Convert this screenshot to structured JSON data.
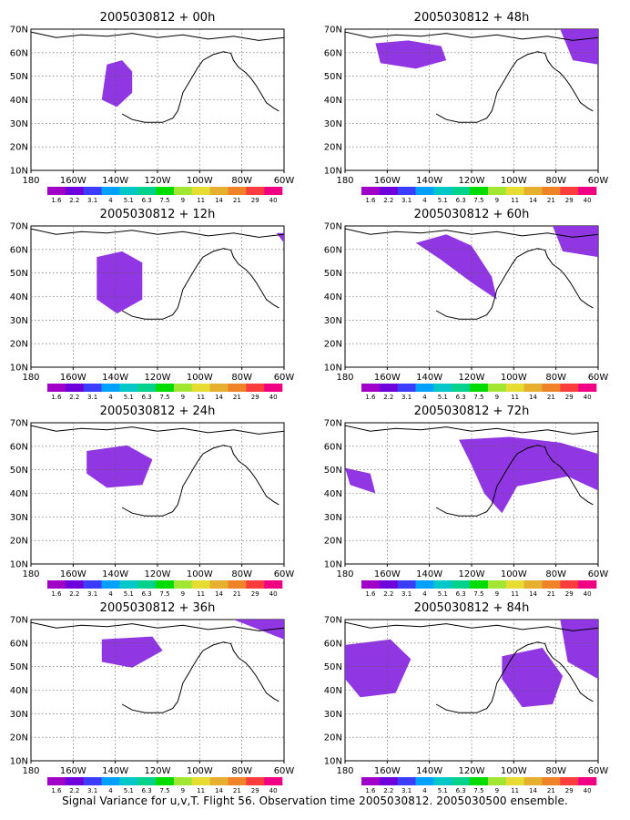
{
  "caption": "Signal Variance for u,v,T. Flight 56. Observation time 2005030812. 2005030500 ensemble.",
  "colors": [
    "#a000c8",
    "#6e00dc",
    "#3c3cff",
    "#00a0ff",
    "#00c8c8",
    "#00d28c",
    "#00dc00",
    "#a0e632",
    "#e6dc32",
    "#e6af2d",
    "#f08228",
    "#fa3c3c",
    "#f00082"
  ],
  "colorbar_labels": [
    "1.6",
    "2.2",
    "3.1",
    "4",
    "5.1",
    "6.3",
    "7.5",
    "9",
    "11",
    "14",
    "21",
    "29",
    "40"
  ],
  "chart_data": [
    {
      "type": "heatmap",
      "title": "2005030812 + 00h",
      "xlim": [
        "180",
        "60W"
      ],
      "ylim": [
        "10N",
        "70N"
      ],
      "xticks": [
        "180",
        "160W",
        "140W",
        "120W",
        "100W",
        "80W",
        "60W"
      ],
      "yticks": [
        "70N",
        "60N",
        "50N",
        "40N",
        "30N",
        "20N",
        "10N"
      ],
      "grid": true
    },
    {
      "type": "heatmap",
      "title": "2005030812 + 48h",
      "xlim": [
        "180",
        "60W"
      ],
      "ylim": [
        "10N",
        "70N"
      ],
      "xticks": [
        "180",
        "160W",
        "140W",
        "120W",
        "100W",
        "80W",
        "60W"
      ],
      "yticks": [
        "70N",
        "60N",
        "50N",
        "40N",
        "30N",
        "20N",
        "10N"
      ],
      "grid": true
    },
    {
      "type": "heatmap",
      "title": "2005030812 + 12h",
      "xlim": [
        "180",
        "60W"
      ],
      "ylim": [
        "10N",
        "70N"
      ],
      "xticks": [
        "180",
        "160W",
        "140W",
        "120W",
        "100W",
        "80W",
        "60W"
      ],
      "yticks": [
        "70N",
        "60N",
        "50N",
        "40N",
        "30N",
        "20N",
        "10N"
      ],
      "grid": true
    },
    {
      "type": "heatmap",
      "title": "2005030812 + 60h",
      "xlim": [
        "180",
        "60W"
      ],
      "ylim": [
        "10N",
        "70N"
      ],
      "xticks": [
        "180",
        "160W",
        "140W",
        "120W",
        "100W",
        "80W",
        "60W"
      ],
      "yticks": [
        "70N",
        "60N",
        "50N",
        "40N",
        "30N",
        "20N",
        "10N"
      ],
      "grid": true
    },
    {
      "type": "heatmap",
      "title": "2005030812 + 24h",
      "xlim": [
        "180",
        "60W"
      ],
      "ylim": [
        "10N",
        "70N"
      ],
      "xticks": [
        "180",
        "160W",
        "140W",
        "120W",
        "100W",
        "80W",
        "60W"
      ],
      "yticks": [
        "70N",
        "60N",
        "50N",
        "40N",
        "30N",
        "20N",
        "10N"
      ],
      "grid": true
    },
    {
      "type": "heatmap",
      "title": "2005030812 + 72h",
      "xlim": [
        "180",
        "60W"
      ],
      "ylim": [
        "10N",
        "70N"
      ],
      "xticks": [
        "180",
        "160W",
        "140W",
        "120W",
        "100W",
        "80W",
        "60W"
      ],
      "yticks": [
        "70N",
        "60N",
        "50N",
        "40N",
        "30N",
        "20N",
        "10N"
      ],
      "grid": true
    },
    {
      "type": "heatmap",
      "title": "2005030812 + 36h",
      "xlim": [
        "180",
        "60W"
      ],
      "ylim": [
        "10N",
        "70N"
      ],
      "xticks": [
        "180",
        "160W",
        "140W",
        "120W",
        "100W",
        "80W",
        "60W"
      ],
      "yticks": [
        "70N",
        "60N",
        "50N",
        "40N",
        "30N",
        "20N",
        "10N"
      ],
      "grid": true
    },
    {
      "type": "heatmap",
      "title": "2005030812 + 84h",
      "xlim": [
        "180",
        "60W"
      ],
      "ylim": [
        "10N",
        "70N"
      ],
      "xticks": [
        "180",
        "160W",
        "140W",
        "120W",
        "100W",
        "80W",
        "60W"
      ],
      "yticks": [
        "70N",
        "60N",
        "50N",
        "40N",
        "30N",
        "20N",
        "10N"
      ],
      "grid": true
    }
  ]
}
